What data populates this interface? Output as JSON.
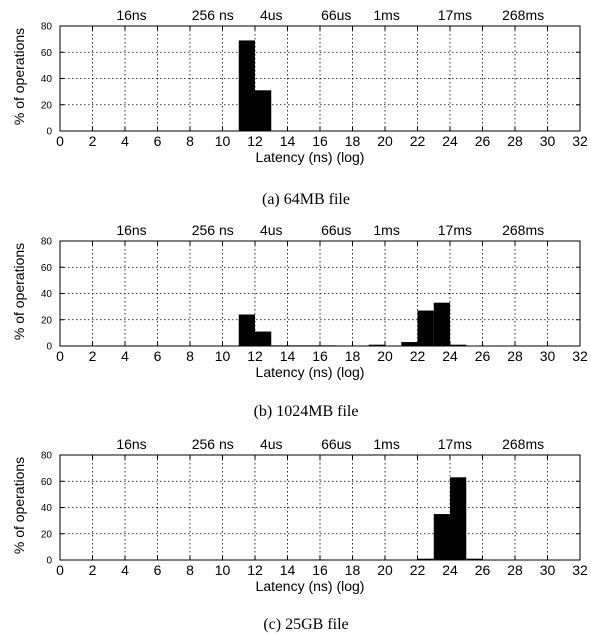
{
  "chart_data": [
    {
      "type": "bar",
      "caption": "(a) 64MB file",
      "xlabel": "Latency (ns) (log)",
      "ylabel": "% of operations",
      "xlim": [
        0,
        32
      ],
      "ylim": [
        0,
        80
      ],
      "xticks": [
        0,
        2,
        4,
        6,
        8,
        10,
        12,
        14,
        16,
        18,
        20,
        22,
        24,
        26,
        28,
        30,
        32
      ],
      "yticks": [
        0,
        20,
        40,
        60,
        80
      ],
      "top_labels": [
        "16ns",
        "256 ns",
        "4us",
        "66us",
        "1ms",
        "17ms",
        "268ms"
      ],
      "grid": true,
      "bin_width": 1,
      "bins": [
        {
          "x": 11.5,
          "value": 69
        },
        {
          "x": 12.5,
          "value": 31
        }
      ]
    },
    {
      "type": "bar",
      "caption": "(b) 1024MB file",
      "xlabel": "Latency (ns) (log)",
      "ylabel": "% of operations",
      "xlim": [
        0,
        32
      ],
      "ylim": [
        0,
        80
      ],
      "xticks": [
        0,
        2,
        4,
        6,
        8,
        10,
        12,
        14,
        16,
        18,
        20,
        22,
        24,
        26,
        28,
        30,
        32
      ],
      "yticks": [
        0,
        20,
        40,
        60,
        80
      ],
      "top_labels": [
        "16ns",
        "256 ns",
        "4us",
        "66us",
        "1ms",
        "17ms",
        "268ms"
      ],
      "grid": true,
      "bin_width": 1,
      "bins": [
        {
          "x": 11.5,
          "value": 24
        },
        {
          "x": 12.5,
          "value": 11
        },
        {
          "x": 13.5,
          "value": 0.5
        },
        {
          "x": 14.5,
          "value": 0.5
        },
        {
          "x": 15.5,
          "value": 0.5
        },
        {
          "x": 16.5,
          "value": 0.5
        },
        {
          "x": 19.5,
          "value": 1
        },
        {
          "x": 21.5,
          "value": 3
        },
        {
          "x": 22.5,
          "value": 27
        },
        {
          "x": 23.5,
          "value": 33
        },
        {
          "x": 24.5,
          "value": 1
        }
      ]
    },
    {
      "type": "bar",
      "caption": "(c) 25GB file",
      "xlabel": "Latency (ns) (log)",
      "ylabel": "% of operations",
      "xlim": [
        0,
        32
      ],
      "ylim": [
        0,
        80
      ],
      "xticks": [
        0,
        2,
        4,
        6,
        8,
        10,
        12,
        14,
        16,
        18,
        20,
        22,
        24,
        26,
        28,
        30,
        32
      ],
      "yticks": [
        0,
        20,
        40,
        60,
        80
      ],
      "top_labels": [
        "16ns",
        "256 ns",
        "4us",
        "66us",
        "1ms",
        "17ms",
        "268ms"
      ],
      "grid": true,
      "bin_width": 1,
      "bins": [
        {
          "x": 22.5,
          "value": 1
        },
        {
          "x": 23.5,
          "value": 35
        },
        {
          "x": 24.5,
          "value": 63
        },
        {
          "x": 25.5,
          "value": 1
        }
      ]
    }
  ]
}
